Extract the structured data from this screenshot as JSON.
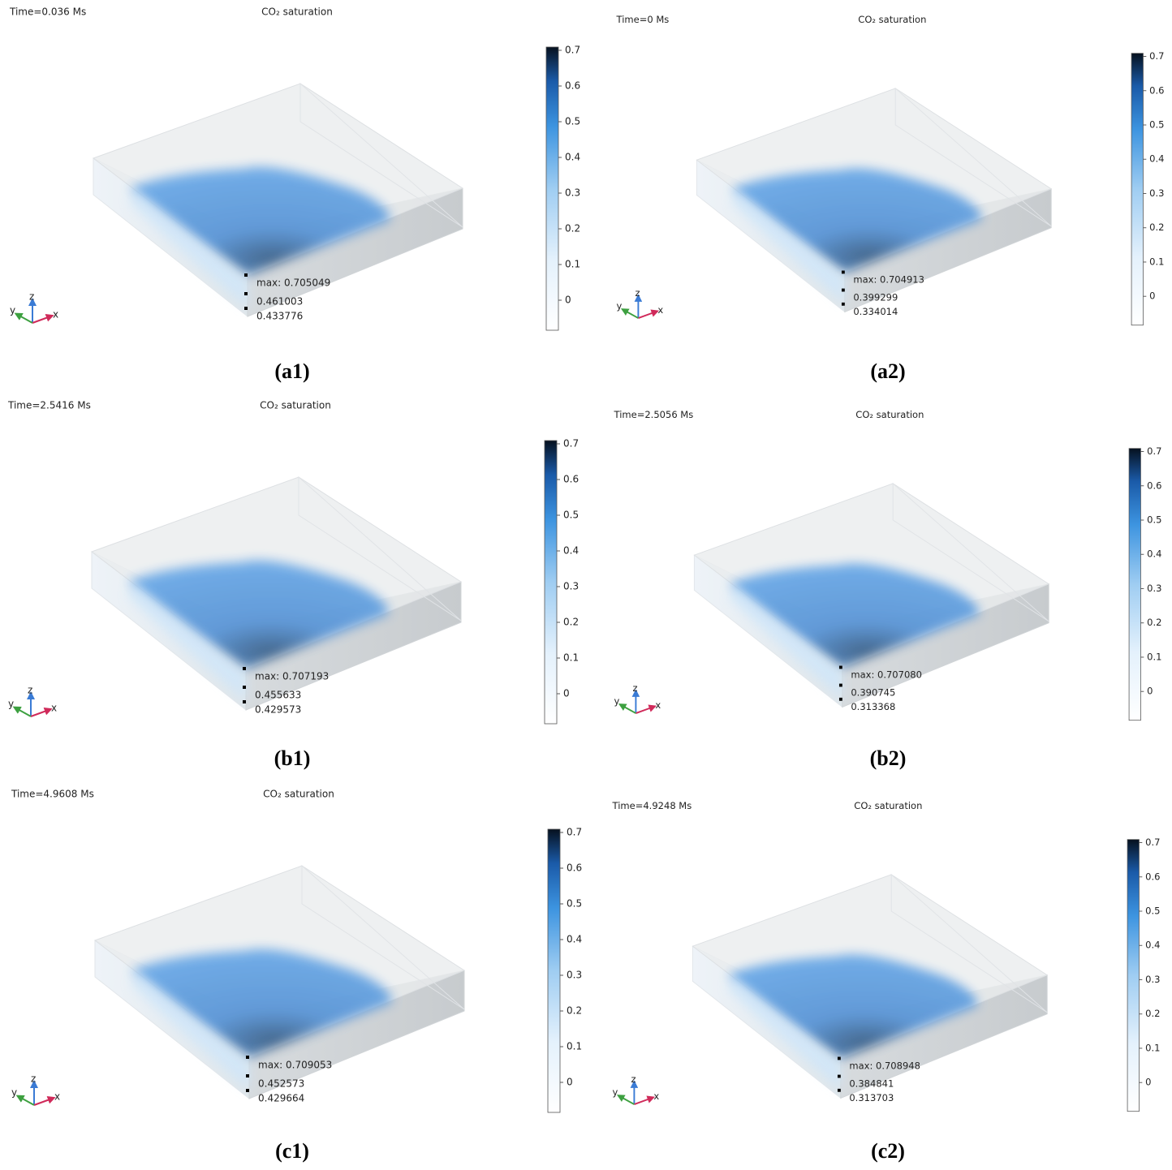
{
  "panels": [
    {
      "time": "Time=0.036 Ms",
      "title": "CO₂ saturation",
      "colorbar_ticks": [
        0,
        0.1,
        0.2,
        0.3,
        0.4,
        0.5,
        0.6,
        0.7
      ],
      "probes": [
        "max: 0.705049",
        "0.461003",
        "0.433776"
      ],
      "triad": {
        "x": "x",
        "y": "y",
        "z": "z"
      },
      "caption": "(a1)"
    },
    {
      "time": "Time=0 Ms",
      "title": "CO₂ saturation",
      "colorbar_ticks": [
        0,
        0.1,
        0.2,
        0.3,
        0.4,
        0.5,
        0.6,
        0.7
      ],
      "probes": [
        "max: 0.704913",
        "0.399299",
        "0.334014"
      ],
      "triad": {
        "x": "x",
        "y": "y",
        "z": "z"
      },
      "caption": "(a2)"
    },
    {
      "time": "Time=2.5416 Ms",
      "title": "CO₂ saturation",
      "colorbar_ticks": [
        0,
        0.1,
        0.2,
        0.3,
        0.4,
        0.5,
        0.6,
        0.7
      ],
      "probes": [
        "max: 0.707193",
        "0.455633",
        "0.429573"
      ],
      "triad": {
        "x": "x",
        "y": "y",
        "z": "z"
      },
      "caption": "(b1)"
    },
    {
      "time": "Time=2.5056 Ms",
      "title": "CO₂ saturation",
      "colorbar_ticks": [
        0,
        0.1,
        0.2,
        0.3,
        0.4,
        0.5,
        0.6,
        0.7
      ],
      "probes": [
        "max: 0.707080",
        "0.390745",
        "0.313368"
      ],
      "triad": {
        "x": "x",
        "y": "y",
        "z": "z"
      },
      "caption": "(b2)"
    },
    {
      "time": "Time=4.9608 Ms",
      "title": "CO₂ saturation",
      "colorbar_ticks": [
        0,
        0.1,
        0.2,
        0.3,
        0.4,
        0.5,
        0.6,
        0.7
      ],
      "probes": [
        "max: 0.709053",
        "0.452573",
        "0.429664"
      ],
      "triad": {
        "x": "x",
        "y": "y",
        "z": "z"
      },
      "caption": "(c1)"
    },
    {
      "time": "Time=4.9248 Ms",
      "title": "CO₂ saturation",
      "colorbar_ticks": [
        0,
        0.1,
        0.2,
        0.3,
        0.4,
        0.5,
        0.6,
        0.7
      ],
      "probes": [
        "max: 0.708948",
        "0.384841",
        "0.313703"
      ],
      "triad": {
        "x": "x",
        "y": "y",
        "z": "z"
      },
      "caption": "(c2)"
    }
  ]
}
